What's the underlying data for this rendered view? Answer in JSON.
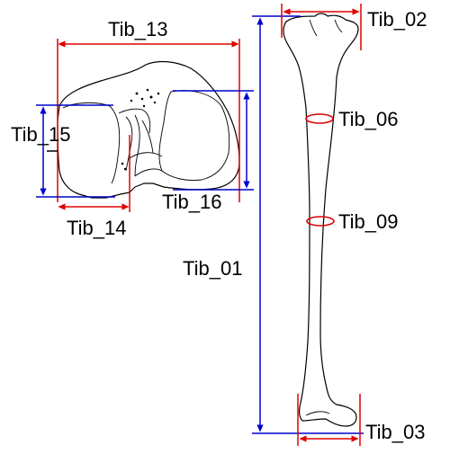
{
  "labels": {
    "tib_01": "Tib_01",
    "tib_02": "Tib_02",
    "tib_03": "Tib_03",
    "tib_06": "Tib_06",
    "tib_09": "Tib_09",
    "tib_13": "Tib_13",
    "tib_14": "Tib_14",
    "tib_15": "Tib_15",
    "tib_16": "Tib_16"
  },
  "colors": {
    "blue": "#0000cc",
    "red": "#e00000",
    "outline": "#000000"
  }
}
